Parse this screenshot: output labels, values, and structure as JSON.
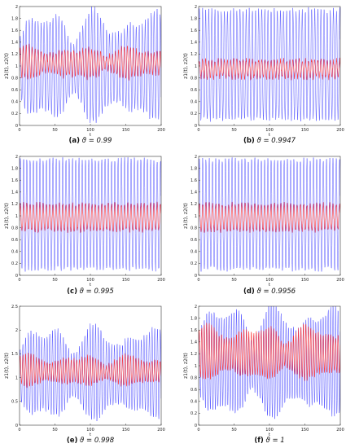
{
  "figure": {
    "panels": [
      {
        "letter": "(a)",
        "rest": " ϑ = 0.99"
      },
      {
        "letter": "(b)",
        "rest": " ϑ = 0.9947"
      },
      {
        "letter": "(c)",
        "rest": " ϑ = 0.995"
      },
      {
        "letter": "(d)",
        "rest": " ϑ = 0.9956"
      },
      {
        "letter": "(e)",
        "rest": " ϑ = 0.998"
      },
      {
        "letter": "(f)",
        "rest": " ϑ = 1"
      }
    ]
  },
  "chart_data": [
    {
      "type": "line",
      "panel": "a",
      "xlabel": "t",
      "ylabel": "z1(t), z2(t)",
      "xlim": [
        0,
        200
      ],
      "ylim": [
        0,
        2
      ],
      "xticks": [
        "0",
        "50",
        "100",
        "150",
        "200"
      ],
      "yticks": [
        "0",
        "0.2",
        "0.4",
        "0.6",
        "0.8",
        "1",
        "1.2",
        "1.4",
        "1.6",
        "1.8",
        "2"
      ],
      "series": [
        {
          "color": "#3b3bff",
          "mean": 0.9,
          "osc_low": 0.15,
          "osc_high": 1.85,
          "period": 4.2,
          "irregular": true
        },
        {
          "color": "#ff2a2a",
          "mean": 1.05,
          "osc_low": 0.8,
          "osc_high": 1.3,
          "period": 4.2,
          "irregular": true
        }
      ]
    },
    {
      "type": "line",
      "panel": "b",
      "xlabel": "t",
      "ylabel": "z1(t), z2(t)",
      "xlim": [
        0,
        200
      ],
      "ylim": [
        0,
        2
      ],
      "xticks": [
        "0",
        "50",
        "100",
        "150",
        "200"
      ],
      "yticks": [
        "0",
        "0.2",
        "0.4",
        "0.6",
        "0.8",
        "1",
        "1.2",
        "1.4",
        "1.6",
        "1.8",
        "2"
      ],
      "series": [
        {
          "color": "#3b3bff",
          "mean": 0.9,
          "osc_low": 0.1,
          "osc_high": 1.95,
          "period": 4.4,
          "irregular": false
        },
        {
          "color": "#ff2a2a",
          "mean": 0.95,
          "osc_low": 0.8,
          "osc_high": 1.1,
          "period": 4.4,
          "irregular": false
        }
      ]
    },
    {
      "type": "line",
      "panel": "c",
      "xlabel": "t",
      "ylabel": "z1(t), z2(t)",
      "xlim": [
        0,
        200
      ],
      "ylim": [
        0,
        2
      ],
      "xticks": [
        "0",
        "50",
        "100",
        "150",
        "200"
      ],
      "yticks": [
        "0",
        "0.2",
        "0.4",
        "0.6",
        "0.8",
        "1",
        "1.2",
        "1.4",
        "1.6",
        "1.8",
        "2"
      ],
      "series": [
        {
          "color": "#3b3bff",
          "mean": 0.9,
          "osc_low": 0.1,
          "osc_high": 1.95,
          "period": 4.6,
          "irregular": false
        },
        {
          "color": "#ff2a2a",
          "mean": 0.95,
          "osc_low": 0.75,
          "osc_high": 1.2,
          "period": 4.6,
          "irregular": false
        }
      ]
    },
    {
      "type": "line",
      "panel": "d",
      "xlabel": "t",
      "ylabel": "z1(t), z2(t)",
      "xlim": [
        0,
        200
      ],
      "ylim": [
        0,
        2
      ],
      "xticks": [
        "0",
        "50",
        "100",
        "150",
        "200"
      ],
      "yticks": [
        "0",
        "0.2",
        "0.4",
        "0.6",
        "0.8",
        "1",
        "1.2",
        "1.4",
        "1.6",
        "1.8",
        "2"
      ],
      "series": [
        {
          "color": "#3b3bff",
          "mean": 0.9,
          "osc_low": 0.1,
          "osc_high": 1.95,
          "period": 4.6,
          "irregular": false
        },
        {
          "color": "#ff2a2a",
          "mean": 0.95,
          "osc_low": 0.75,
          "osc_high": 1.2,
          "period": 4.6,
          "irregular": false
        }
      ]
    },
    {
      "type": "line",
      "panel": "e",
      "xlabel": "t",
      "ylabel": "z1(t), z2(t)",
      "xlim": [
        0,
        200
      ],
      "ylim": [
        0,
        2.5
      ],
      "xticks": [
        "0",
        "50",
        "100",
        "150",
        "200"
      ],
      "yticks": [
        "0",
        "0.5",
        "1",
        "1.5",
        "2",
        "2.5"
      ],
      "series": [
        {
          "color": "#3b3bff",
          "mean": 1.0,
          "osc_low": 0.2,
          "osc_high": 2.0,
          "period": 3.8,
          "irregular": true
        },
        {
          "color": "#ff2a2a",
          "mean": 1.1,
          "osc_low": 0.85,
          "osc_high": 1.45,
          "period": 3.8,
          "irregular": true
        }
      ]
    },
    {
      "type": "line",
      "panel": "f",
      "xlabel": "t",
      "ylabel": "z1(t), z2(t)",
      "xlim": [
        0,
        200
      ],
      "ylim": [
        0,
        2
      ],
      "xticks": [
        "0",
        "50",
        "100",
        "150",
        "200"
      ],
      "yticks": [
        "0",
        "0.2",
        "0.4",
        "0.6",
        "0.8",
        "1",
        "1.2",
        "1.4",
        "1.6",
        "1.8",
        "2"
      ],
      "series": [
        {
          "color": "#3b3bff",
          "mean": 1.0,
          "osc_low": 0.2,
          "osc_high": 1.95,
          "period": 3.5,
          "irregular": true
        },
        {
          "color": "#ff2a2a",
          "mean": 1.15,
          "osc_low": 0.8,
          "osc_high": 1.65,
          "period": 3.5,
          "irregular": true
        }
      ]
    }
  ]
}
